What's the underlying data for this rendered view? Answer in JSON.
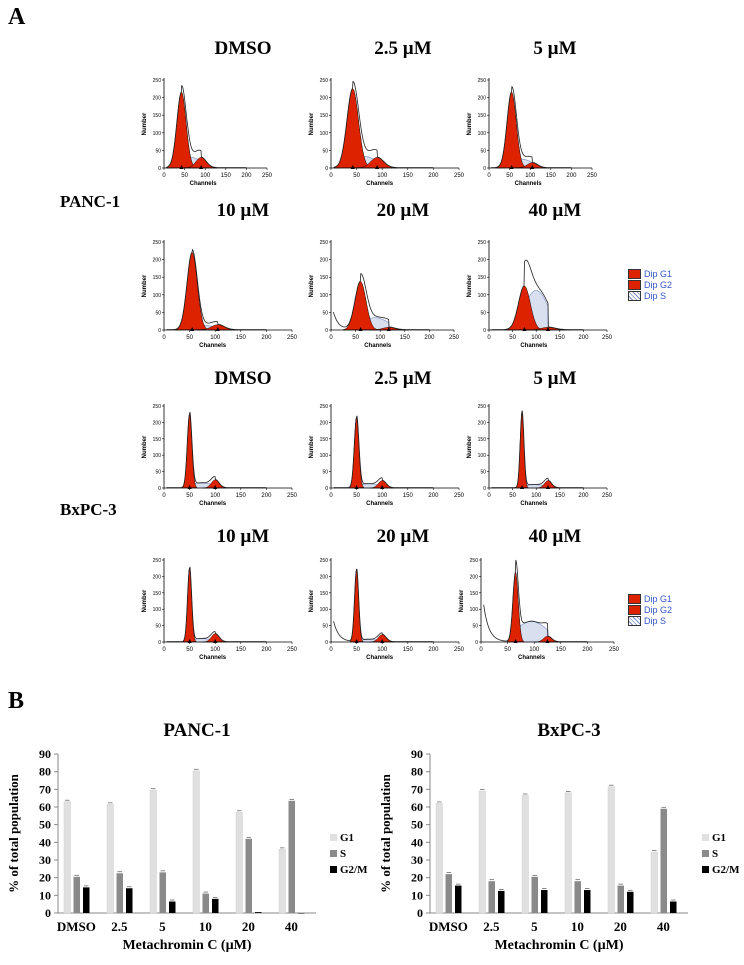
{
  "panel_a": {
    "letter": "A",
    "rows": [
      {
        "cell_line": "PANC-1",
        "top_conditions": [
          "DMSO",
          "2.5 µM",
          "5 µM"
        ],
        "bottom_conditions": [
          "10 µM",
          "20 µM",
          "40 µM"
        ]
      },
      {
        "cell_line": "BxPC-3",
        "top_conditions": [
          "DMSO",
          "2.5 µM",
          "5 µM"
        ],
        "bottom_conditions": [
          "10 µM",
          "20 µM",
          "40 µM"
        ]
      }
    ],
    "axis_x_label": "Channels",
    "axis_y_label": "Number",
    "x_ticks": [
      "0",
      "50",
      "100",
      "150",
      "200",
      "250"
    ],
    "legend": [
      "Dip G1",
      "Dip G2",
      "Dip S"
    ],
    "colors": {
      "g1": "#dd2200",
      "g2": "#dd2200",
      "s": "#d8e0f0",
      "line": "#222222"
    }
  },
  "panel_b": {
    "letter": "B"
  },
  "chart_data": [
    {
      "type": "bar",
      "title": "PANC-1",
      "xlabel": "Metachromin C (µM)",
      "ylabel": "% of total population",
      "ylim": [
        0,
        90
      ],
      "yticks": [
        "0",
        "10",
        "20",
        "30",
        "40",
        "50",
        "60",
        "70",
        "80",
        "90"
      ],
      "categories": [
        "DMSO",
        "2.5",
        "5",
        "10",
        "20",
        "40"
      ],
      "series": [
        {
          "name": "G1",
          "color": "#e0e0e0",
          "values": [
            63,
            61.5,
            69.5,
            80.5,
            57,
            36
          ]
        },
        {
          "name": "S",
          "color": "#8a8a8a",
          "values": [
            20.5,
            22.5,
            23,
            11,
            42,
            63.5
          ]
        },
        {
          "name": "G2/M",
          "color": "#000000",
          "values": [
            14.5,
            14,
            6.5,
            8,
            0.5,
            0
          ]
        }
      ]
    },
    {
      "type": "bar",
      "title": "BxPC-3",
      "xlabel": "Metachromin C (µM)",
      "ylabel": "% of total population",
      "ylim": [
        0,
        90
      ],
      "yticks": [
        "0",
        "10",
        "20",
        "30",
        "40",
        "50",
        "60",
        "70",
        "80",
        "90"
      ],
      "categories": [
        "DMSO",
        "2.5",
        "5",
        "10",
        "20",
        "40"
      ],
      "series": [
        {
          "name": "G1",
          "color": "#e0e0e0",
          "values": [
            62,
            69,
            66.5,
            68,
            71.5,
            34.5
          ]
        },
        {
          "name": "S",
          "color": "#8a8a8a",
          "values": [
            22,
            18,
            20.5,
            18,
            15.5,
            59
          ]
        },
        {
          "name": "G2/M",
          "color": "#000000",
          "values": [
            15.5,
            12.5,
            13,
            13,
            12,
            6.5
          ]
        }
      ]
    }
  ]
}
